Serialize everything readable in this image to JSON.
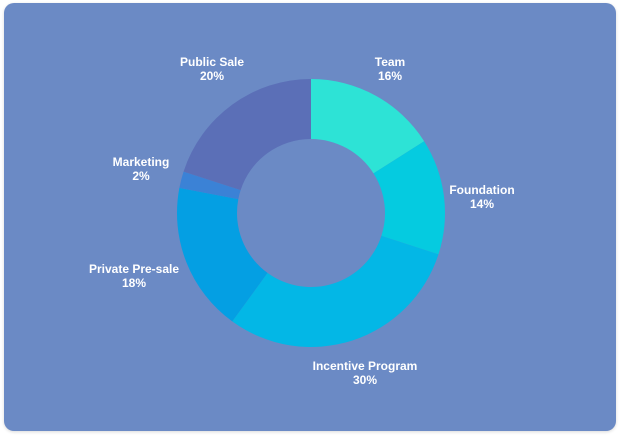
{
  "chart_data": {
    "type": "pie",
    "donut": true,
    "categories": [
      "Team",
      "Foundation",
      "Incentive Program",
      "Private Pre-sale",
      "Marketing",
      "Public Sale"
    ],
    "values": [
      16,
      14,
      30,
      18,
      2,
      20
    ],
    "value_labels": [
      "16%",
      "14%",
      "30%",
      "18%",
      "2%",
      "20%"
    ],
    "colors": [
      "#2de3d6",
      "#05cbe0",
      "#03b7e6",
      "#049fe3",
      "#3b82d6",
      "#5b6fb7"
    ],
    "start_angle": "12 o'clock",
    "direction": "clockwise"
  },
  "background": "#6b8ac5",
  "label_color": "#ffffff"
}
